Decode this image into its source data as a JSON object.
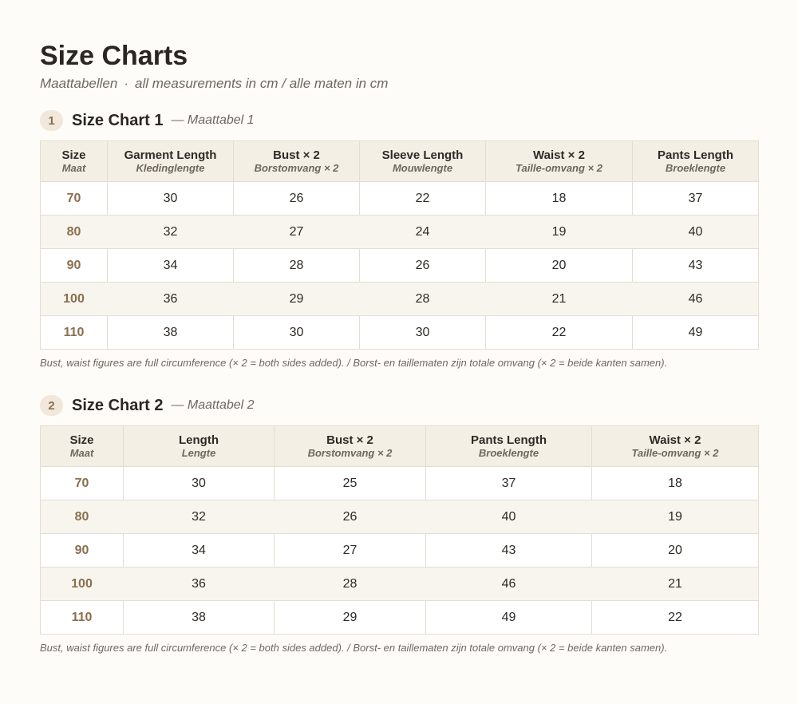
{
  "header": {
    "title": "Size Charts",
    "subtitle_primary": "Maattabellen",
    "subtitle_separator": "·",
    "subtitle_secondary": "all measurements in cm / alle maten in cm"
  },
  "charts": [
    {
      "number": "1",
      "title": "Size Chart 1",
      "subtitle": "— Maattabel 1",
      "columns": [
        {
          "label": "Size",
          "sublabel": "Maat"
        },
        {
          "label": "Garment Length",
          "sublabel": "Kledinglengte"
        },
        {
          "label": "Bust × 2",
          "sublabel": "Borstomvang × 2"
        },
        {
          "label": "Sleeve Length",
          "sublabel": "Mouwlengte"
        },
        {
          "label": "Waist × 2",
          "sublabel": "Taille-omvang × 2"
        },
        {
          "label": "Pants Length",
          "sublabel": "Broeklengte"
        }
      ],
      "rows": [
        [
          "70",
          "30",
          "26",
          "22",
          "18",
          "37"
        ],
        [
          "80",
          "32",
          "27",
          "24",
          "19",
          "40"
        ],
        [
          "90",
          "34",
          "28",
          "26",
          "20",
          "43"
        ],
        [
          "100",
          "36",
          "29",
          "28",
          "21",
          "46"
        ],
        [
          "110",
          "38",
          "30",
          "30",
          "22",
          "49"
        ]
      ],
      "note": "Bust, waist figures are full circumference (× 2 = both sides added). / Borst- en taillematen zijn totale omvang (× 2 = beide kanten samen)."
    },
    {
      "number": "2",
      "title": "Size Chart 2",
      "subtitle": "— Maattabel 2",
      "columns": [
        {
          "label": "Size",
          "sublabel": "Maat"
        },
        {
          "label": "Length",
          "sublabel": "Lengte"
        },
        {
          "label": "Bust × 2",
          "sublabel": "Borstomvang × 2"
        },
        {
          "label": "Pants Length",
          "sublabel": "Broeklengte"
        },
        {
          "label": "Waist × 2",
          "sublabel": "Taille-omvang × 2"
        }
      ],
      "rows": [
        [
          "70",
          "30",
          "25",
          "37",
          "18"
        ],
        [
          "80",
          "32",
          "26",
          "40",
          "19"
        ],
        [
          "90",
          "34",
          "27",
          "43",
          "20"
        ],
        [
          "100",
          "36",
          "28",
          "46",
          "21"
        ],
        [
          "110",
          "38",
          "29",
          "49",
          "22"
        ]
      ],
      "note": "Bust, waist figures are full circumference (× 2 = both sides added). / Borst- en taillematen zijn totale omvang (× 2 = beide kanten samen)."
    }
  ]
}
